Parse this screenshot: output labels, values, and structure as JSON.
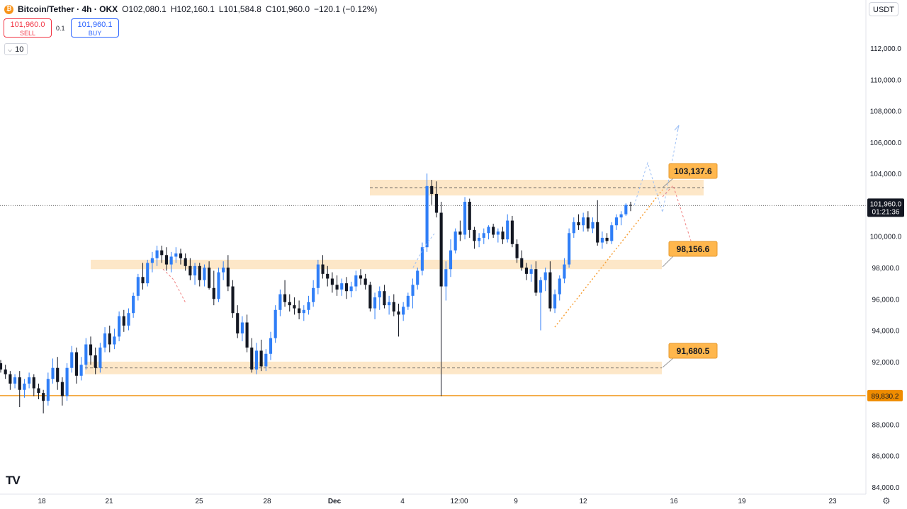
{
  "header": {
    "symbol": "Bitcoin/Tether · 4h · OKX",
    "open": "O102,080.1",
    "high": "H102,160.1",
    "low": "L101,584.8",
    "close": "C101,960.0",
    "change": "−120.1 (−0.12%)"
  },
  "trade": {
    "sell_price": "101,960.0",
    "sell_label": "SELL",
    "buy_price": "101,960.1",
    "buy_label": "BUY",
    "spread": "0.1",
    "lot_size": "10"
  },
  "currency": "USDT",
  "colors": {
    "up": "#2f7ef7",
    "down": "#131722",
    "zone": "#fde4c2",
    "label_bg": "#ffb74d",
    "support_line": "#ef8c00",
    "trend": "#f7a13a",
    "projection": "#f08080"
  },
  "price_axis": {
    "ticks": [
      "112,000.0",
      "110,000.0",
      "108,000.0",
      "106,000.0",
      "104,000.0",
      "100,000.0",
      "98,000.0",
      "96,000.0",
      "94,000.0",
      "92,000.0",
      "90,000.0",
      "88,000.0",
      "86,000.0",
      "84,000.0"
    ],
    "current_price": "101,960.0",
    "countdown": "01:21:36",
    "support_price": "89,830.2"
  },
  "time_axis": {
    "labels": [
      "18",
      "21",
      "25",
      "28",
      "Dec",
      "4",
      "12:00",
      "9",
      "12",
      "16",
      "19",
      "23"
    ]
  },
  "annotations": {
    "resistance_label": "103,137.6",
    "mid_label": "98,156.6",
    "support_label": "91,680.5"
  },
  "chart_data": {
    "type": "candlestick",
    "timeframe": "4h",
    "ylim": [
      84000,
      113000
    ],
    "ohlc": [
      [
        91900,
        92100,
        91300,
        91500
      ],
      [
        91500,
        91800,
        90900,
        91200
      ],
      [
        91200,
        91400,
        90200,
        90600
      ],
      [
        90600,
        91200,
        90300,
        91000
      ],
      [
        91000,
        91400,
        89100,
        90200
      ],
      [
        90200,
        90900,
        89700,
        90600
      ],
      [
        90600,
        91300,
        90300,
        91000
      ],
      [
        91000,
        91200,
        89800,
        90300
      ],
      [
        90300,
        90600,
        89600,
        90000
      ],
      [
        90000,
        90200,
        88700,
        89500
      ],
      [
        89500,
        91300,
        89200,
        90900
      ],
      [
        90900,
        92200,
        90600,
        91600
      ],
      [
        91600,
        92300,
        90200,
        90700
      ],
      [
        90700,
        91000,
        89200,
        89800
      ],
      [
        89800,
        91900,
        89500,
        91600
      ],
      [
        91600,
        93000,
        91300,
        92600
      ],
      [
        92600,
        92900,
        90600,
        91100
      ],
      [
        91100,
        92300,
        90800,
        91800
      ],
      [
        91800,
        93500,
        91500,
        93100
      ],
      [
        93100,
        93600,
        91800,
        92400
      ],
      [
        92400,
        92900,
        91200,
        91600
      ],
      [
        91600,
        93200,
        91300,
        92900
      ],
      [
        92900,
        94200,
        92600,
        93800
      ],
      [
        93800,
        94300,
        92600,
        93100
      ],
      [
        93100,
        94100,
        92800,
        93600
      ],
      [
        93600,
        95200,
        93300,
        94900
      ],
      [
        94900,
        95300,
        93900,
        94300
      ],
      [
        94300,
        95400,
        94000,
        95100
      ],
      [
        95100,
        96400,
        94800,
        96200
      ],
      [
        96200,
        97600,
        95900,
        97400
      ],
      [
        97400,
        98300,
        96600,
        97000
      ],
      [
        97000,
        98500,
        96800,
        98300
      ],
      [
        98300,
        99000,
        97700,
        98600
      ],
      [
        98600,
        99400,
        98100,
        99100
      ],
      [
        99100,
        99400,
        98300,
        98800
      ],
      [
        98800,
        99300,
        97800,
        98200
      ],
      [
        98200,
        99000,
        97700,
        98700
      ],
      [
        98700,
        99300,
        98300,
        98900
      ],
      [
        98900,
        99200,
        98200,
        98600
      ],
      [
        98600,
        98900,
        97800,
        98100
      ],
      [
        98100,
        98600,
        97200,
        97500
      ],
      [
        97500,
        98300,
        96900,
        98100
      ],
      [
        98100,
        98300,
        96800,
        97200
      ],
      [
        97200,
        98200,
        96800,
        98000
      ],
      [
        98000,
        98400,
        96600,
        96700
      ],
      [
        96700,
        97800,
        95600,
        96000
      ],
      [
        96000,
        98000,
        95800,
        97700
      ],
      [
        97700,
        98400,
        97200,
        98000
      ],
      [
        98000,
        98800,
        96500,
        96800
      ],
      [
        96800,
        97200,
        94800,
        95100
      ],
      [
        95100,
        95600,
        93500,
        93800
      ],
      [
        93800,
        94900,
        93300,
        94500
      ],
      [
        94500,
        95000,
        92600,
        92900
      ],
      [
        92900,
        93500,
        91300,
        91500
      ],
      [
        91500,
        93200,
        91200,
        92700
      ],
      [
        92700,
        93400,
        91400,
        91700
      ],
      [
        91700,
        92800,
        91400,
        92500
      ],
      [
        92500,
        93900,
        92100,
        93500
      ],
      [
        93500,
        95600,
        93200,
        95300
      ],
      [
        95300,
        96600,
        94900,
        96300
      ],
      [
        96300,
        97200,
        95500,
        95800
      ],
      [
        95800,
        96300,
        95200,
        95600
      ],
      [
        95600,
        96100,
        95000,
        95400
      ],
      [
        95400,
        95900,
        94700,
        95100
      ],
      [
        95100,
        95600,
        94600,
        95300
      ],
      [
        95300,
        96200,
        95000,
        95800
      ],
      [
        95800,
        97200,
        95500,
        96700
      ],
      [
        96700,
        98500,
        96300,
        98200
      ],
      [
        98200,
        98800,
        97300,
        97600
      ],
      [
        97600,
        98100,
        96800,
        97300
      ],
      [
        97300,
        97700,
        96400,
        96900
      ],
      [
        96900,
        97500,
        96200,
        96600
      ],
      [
        96600,
        97300,
        96200,
        97000
      ],
      [
        97000,
        97400,
        96000,
        96500
      ],
      [
        96500,
        97100,
        96100,
        96800
      ],
      [
        96800,
        97800,
        96500,
        97500
      ],
      [
        97500,
        97900,
        96900,
        97300
      ],
      [
        97300,
        97600,
        96600,
        96900
      ],
      [
        96900,
        97100,
        95200,
        95400
      ],
      [
        95400,
        96400,
        94700,
        96100
      ],
      [
        96100,
        96800,
        95300,
        96500
      ],
      [
        96500,
        96900,
        95400,
        95600
      ],
      [
        95600,
        96200,
        95000,
        95800
      ],
      [
        95800,
        96300,
        94900,
        95200
      ],
      [
        95200,
        95700,
        93600,
        95000
      ],
      [
        95000,
        95800,
        94600,
        95500
      ],
      [
        95500,
        96400,
        95300,
        96200
      ],
      [
        96200,
        97300,
        95400,
        96900
      ],
      [
        96900,
        98000,
        96600,
        97800
      ],
      [
        97800,
        99600,
        97500,
        99300
      ],
      [
        99300,
        104000,
        99000,
        103200
      ],
      [
        103200,
        103600,
        102000,
        102700
      ],
      [
        102700,
        103500,
        101200,
        101500
      ],
      [
        101500,
        102200,
        89800,
        96800
      ],
      [
        96800,
        98400,
        95900,
        97900
      ],
      [
        97900,
        99800,
        97400,
        99100
      ],
      [
        99100,
        100500,
        98900,
        100300
      ],
      [
        100300,
        101000,
        99700,
        100100
      ],
      [
        100100,
        102500,
        99800,
        102200
      ],
      [
        102200,
        102400,
        99900,
        100400
      ],
      [
        100400,
        100600,
        99200,
        99700
      ],
      [
        99700,
        100200,
        99300,
        99900
      ],
      [
        99900,
        100500,
        99500,
        100200
      ],
      [
        100200,
        100700,
        99800,
        100600
      ],
      [
        100600,
        100800,
        99900,
        100100
      ],
      [
        100100,
        100500,
        99600,
        100300
      ],
      [
        100300,
        100600,
        99500,
        99800
      ],
      [
        99800,
        101400,
        99600,
        101000
      ],
      [
        101000,
        101300,
        99300,
        99500
      ],
      [
        99500,
        99800,
        98300,
        98600
      ],
      [
        98600,
        99100,
        97800,
        98000
      ],
      [
        98000,
        98300,
        97200,
        97600
      ],
      [
        97600,
        98200,
        97100,
        97900
      ],
      [
        97900,
        98400,
        96200,
        96400
      ],
      [
        96400,
        97400,
        94000,
        97200
      ],
      [
        97200,
        98000,
        96500,
        97700
      ],
      [
        97700,
        98400,
        95200,
        95400
      ],
      [
        95400,
        96600,
        95100,
        96300
      ],
      [
        96300,
        97500,
        95900,
        97300
      ],
      [
        97300,
        98600,
        97000,
        98200
      ],
      [
        98200,
        100500,
        98000,
        100200
      ],
      [
        100200,
        101200,
        99900,
        100900
      ],
      [
        100900,
        101400,
        100400,
        100700
      ],
      [
        100700,
        101500,
        100300,
        101200
      ],
      [
        101200,
        101600,
        100300,
        100500
      ],
      [
        100500,
        101200,
        100200,
        100900
      ],
      [
        100900,
        102300,
        99400,
        99600
      ],
      [
        99600,
        100300,
        99200,
        99900
      ],
      [
        99900,
        100200,
        99500,
        99700
      ],
      [
        99700,
        100900,
        99500,
        100700
      ],
      [
        100700,
        101400,
        100400,
        101200
      ],
      [
        101200,
        101600,
        100700,
        101400
      ],
      [
        101400,
        102100,
        101300,
        102000
      ],
      [
        102000,
        102200,
        101600,
        101960
      ]
    ],
    "zones": [
      {
        "label": "103,137.6",
        "from": 102600,
        "to": 103600
      },
      {
        "label": "98,156.6",
        "from": 97900,
        "to": 98500
      },
      {
        "label": "91,680.5",
        "from": 91200,
        "to": 92000
      }
    ],
    "support_line": 89830.2
  }
}
